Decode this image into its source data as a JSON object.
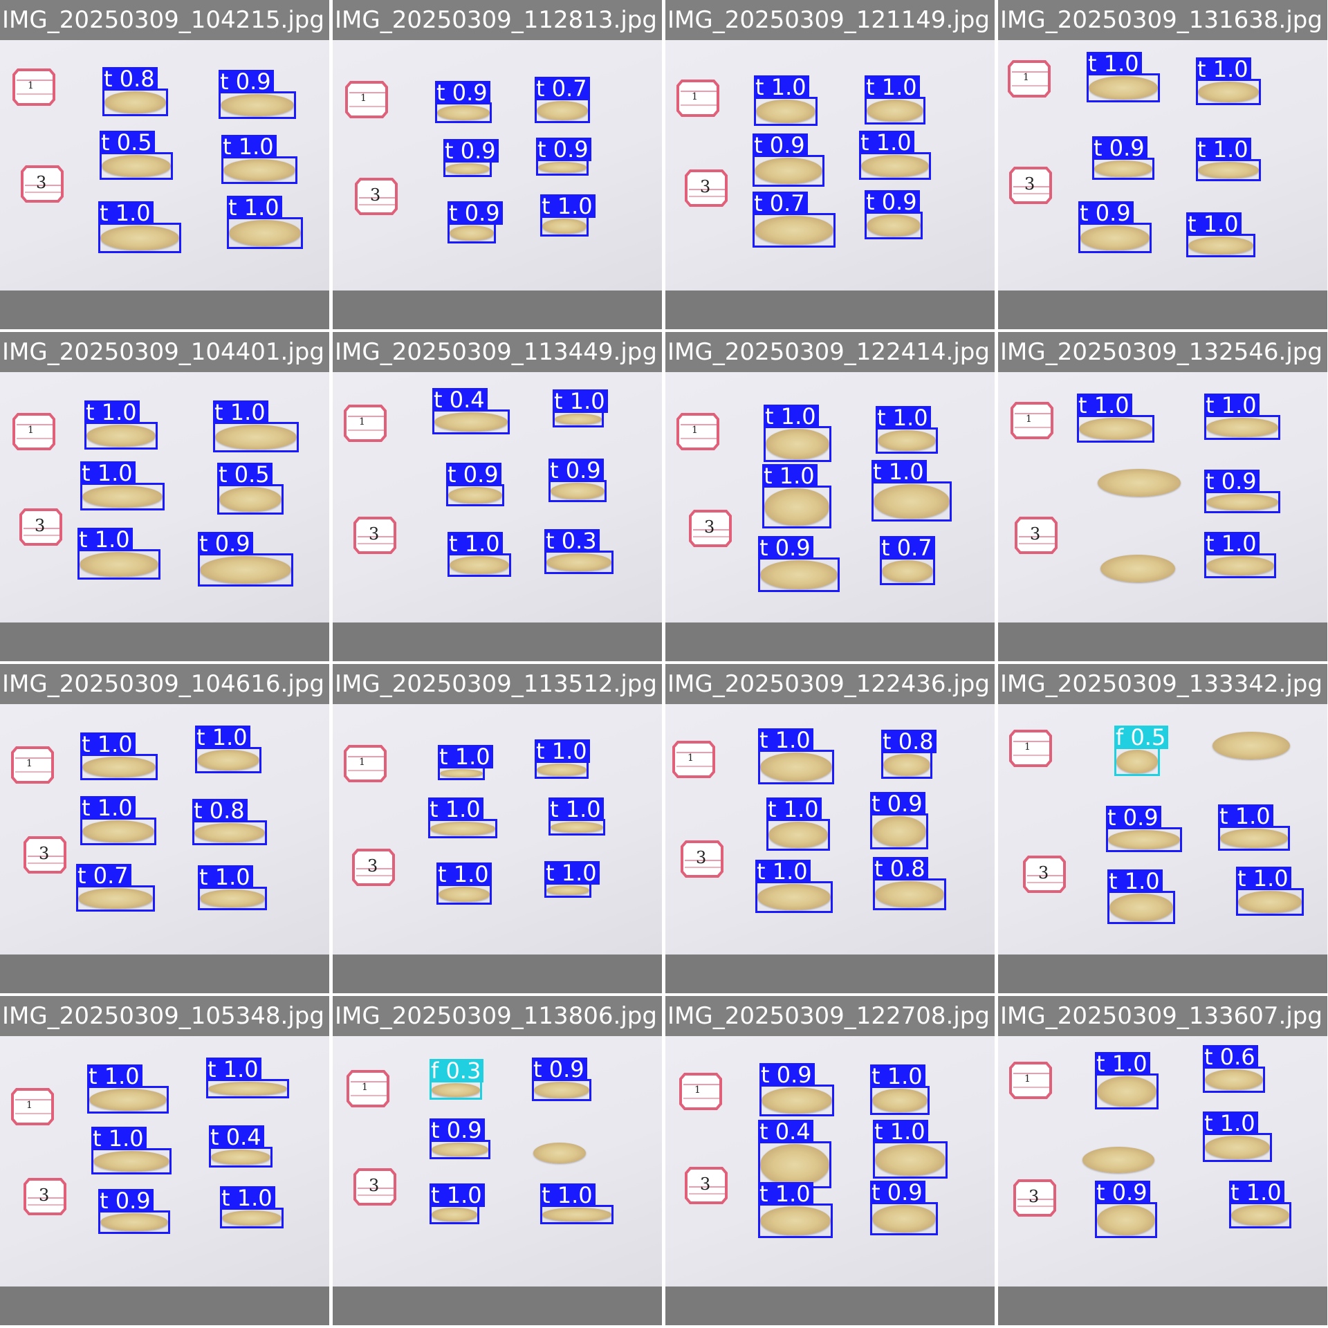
{
  "colors": {
    "class_t": "#1a1aff",
    "class_f": "#20d0e0",
    "title_bar": "#808080",
    "photo_bg": "#ececf2",
    "card_pink": "#e0607a"
  },
  "tiles": [
    {
      "title": "IMG_20250309_104215.jpg",
      "cards": [
        "1",
        "3"
      ],
      "dets": [
        {
          "label": "t 0.8"
        },
        {
          "label": "t 0.9"
        },
        {
          "label": "t 0.5"
        },
        {
          "label": "t 1.0"
        },
        {
          "label": "t 1.0"
        },
        {
          "label": "t 1.0"
        }
      ]
    },
    {
      "title": "IMG_20250309_112813.jpg",
      "cards": [
        "1",
        "3"
      ],
      "dets": [
        {
          "label": "t 0.9"
        },
        {
          "label": "t 0.7"
        },
        {
          "label": "t 0.9"
        },
        {
          "label": "t 0.9"
        },
        {
          "label": "t 0.9"
        },
        {
          "label": "t 1.0"
        }
      ]
    },
    {
      "title": "IMG_20250309_121149.jpg",
      "cards": [
        "1",
        "3"
      ],
      "dets": [
        {
          "label": "t 1.0"
        },
        {
          "label": "t 1.0"
        },
        {
          "label": "t 0.9"
        },
        {
          "label": "t 1.0"
        },
        {
          "label": "t 0.7"
        },
        {
          "label": "t 0.9"
        }
      ]
    },
    {
      "title": "IMG_20250309_131638.jpg",
      "cards": [
        "1",
        "3"
      ],
      "dets": [
        {
          "label": "t 1.0"
        },
        {
          "label": "t 1.0"
        },
        {
          "label": "t 0.9"
        },
        {
          "label": "t 1.0"
        },
        {
          "label": "t 0.9"
        },
        {
          "label": "t 1.0"
        }
      ]
    },
    {
      "title": "IMG_20250309_104401.jpg",
      "cards": [
        "1",
        "3"
      ],
      "dets": [
        {
          "label": "t 1.0"
        },
        {
          "label": "t 1.0"
        },
        {
          "label": "t 1.0"
        },
        {
          "label": "t 0.5"
        },
        {
          "label": "t 1.0"
        },
        {
          "label": "t 0.9"
        }
      ]
    },
    {
      "title": "IMG_20250309_113449.jpg",
      "cards": [
        "1",
        "3"
      ],
      "dets": [
        {
          "label": "t 0.4"
        },
        {
          "label": "t 1.0"
        },
        {
          "label": "t 0.9"
        },
        {
          "label": "t 0.9"
        },
        {
          "label": "t 1.0"
        },
        {
          "label": "t 0.3"
        }
      ]
    },
    {
      "title": "IMG_20250309_122414.jpg",
      "cards": [
        "1",
        "3"
      ],
      "dets": [
        {
          "label": "t 1.0"
        },
        {
          "label": "t 1.0"
        },
        {
          "label": "t 1.0"
        },
        {
          "label": "t 1.0"
        },
        {
          "label": "t 0.9"
        },
        {
          "label": "t 0.7"
        }
      ]
    },
    {
      "title": "IMG_20250309_132546.jpg",
      "cards": [
        "1",
        "3"
      ],
      "dets": [
        {
          "label": "t 1.0"
        },
        {
          "label": "t 1.0"
        },
        {
          "label": "t 0.9"
        },
        {
          "label": "t 1.0"
        }
      ]
    },
    {
      "title": "IMG_20250309_104616.jpg",
      "cards": [
        "1",
        "3"
      ],
      "dets": [
        {
          "label": "t 1.0"
        },
        {
          "label": "t 1.0"
        },
        {
          "label": "t 1.0"
        },
        {
          "label": "t 0.8"
        },
        {
          "label": "t 0.7"
        },
        {
          "label": "t 1.0"
        }
      ]
    },
    {
      "title": "IMG_20250309_113512.jpg",
      "cards": [
        "1",
        "3"
      ],
      "dets": [
        {
          "label": "t 1.0"
        },
        {
          "label": "t 1.0"
        },
        {
          "label": "t 1.0"
        },
        {
          "label": "t 1.0"
        },
        {
          "label": "t 1.0"
        },
        {
          "label": "t 1.0"
        }
      ]
    },
    {
      "title": "IMG_20250309_122436.jpg",
      "cards": [
        "1",
        "3"
      ],
      "dets": [
        {
          "label": "t 1.0"
        },
        {
          "label": "t 0.8"
        },
        {
          "label": "t 1.0"
        },
        {
          "label": "t 0.9"
        },
        {
          "label": "t 1.0"
        },
        {
          "label": "t 0.8"
        }
      ]
    },
    {
      "title": "IMG_20250309_133342.jpg",
      "cards": [
        "1",
        "3"
      ],
      "dets": [
        {
          "label": "f 0.5"
        },
        {
          "label": "t 0.9"
        },
        {
          "label": "t 1.0"
        },
        {
          "label": "t 1.0"
        },
        {
          "label": "t 1.0"
        }
      ]
    },
    {
      "title": "IMG_20250309_105348.jpg",
      "cards": [
        "1",
        "3"
      ],
      "dets": [
        {
          "label": "t 1.0"
        },
        {
          "label": "t 1.0"
        },
        {
          "label": "t 1.0"
        },
        {
          "label": "t 0.4"
        },
        {
          "label": "t 0.9"
        },
        {
          "label": "t 1.0"
        }
      ]
    },
    {
      "title": "IMG_20250309_113806.jpg",
      "cards": [
        "1",
        "3"
      ],
      "dets": [
        {
          "label": "f 0.3"
        },
        {
          "label": "t 0.9"
        },
        {
          "label": "t 0.9"
        },
        {
          "label": "t 1.0"
        },
        {
          "label": "t 1.0"
        }
      ]
    },
    {
      "title": "IMG_20250309_122708.jpg",
      "cards": [
        "1",
        "3"
      ],
      "dets": [
        {
          "label": "t 0.9"
        },
        {
          "label": "t 1.0"
        },
        {
          "label": "t 0.4"
        },
        {
          "label": "t 1.0"
        },
        {
          "label": "t 1.0"
        },
        {
          "label": "t 0.9"
        }
      ]
    },
    {
      "title": "IMG_20250309_133607.jpg",
      "cards": [
        "1",
        "3"
      ],
      "dets": [
        {
          "label": "t 1.0"
        },
        {
          "label": "t 0.6"
        },
        {
          "label": "t 1.0"
        },
        {
          "label": "t 0.9"
        },
        {
          "label": "t 1.0"
        }
      ]
    }
  ]
}
